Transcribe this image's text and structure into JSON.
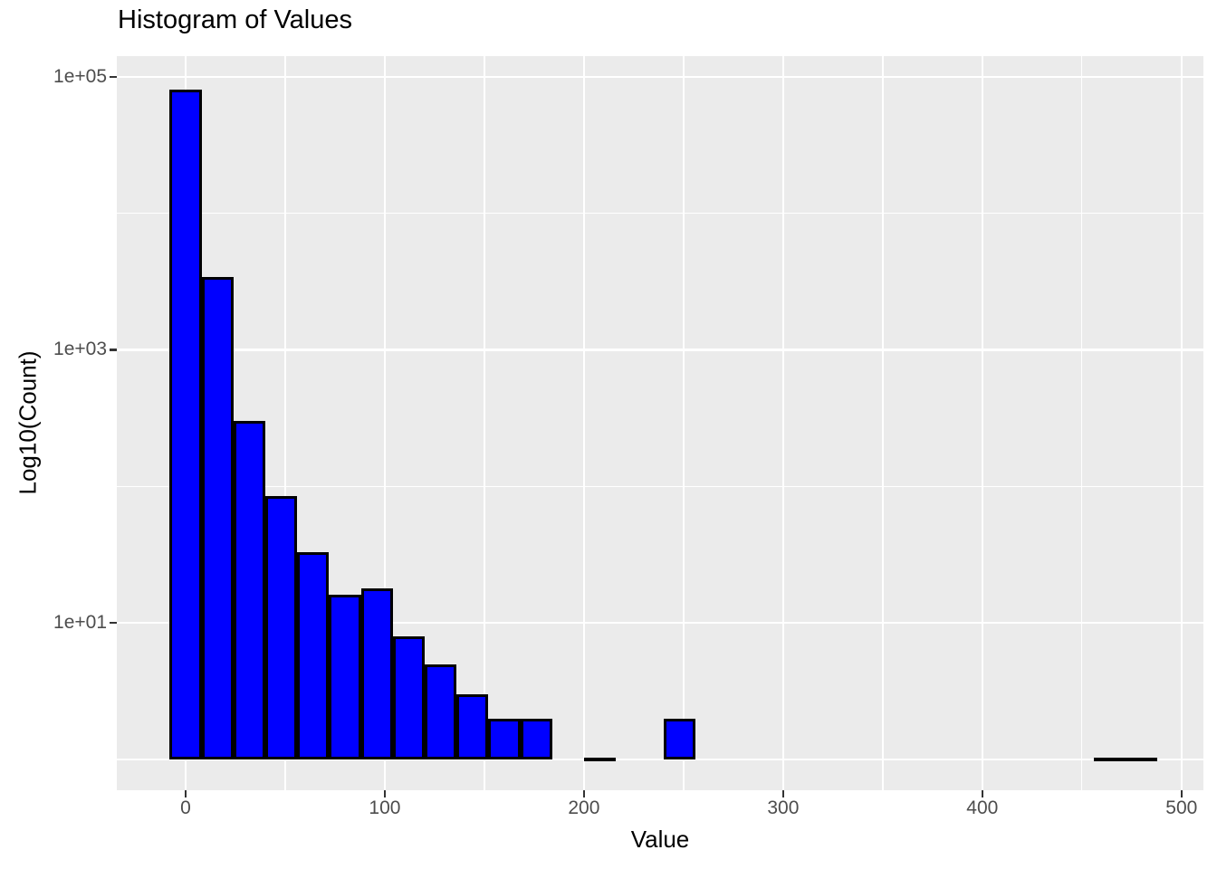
{
  "chart_data": {
    "type": "bar",
    "subtype": "histogram",
    "title": "Histogram of Values",
    "xlabel": "Value",
    "ylabel": "Log10(Count)",
    "y_scale": "log10",
    "legend": "none",
    "grid": "on",
    "panel_bg": "#EBEBEB",
    "grid_color": "#FFFFFF",
    "bar_fill": "#0000FF",
    "bar_border": "#000000",
    "tick_label_color": "#4D4D4D",
    "tick_mark_color": "#333333",
    "binwidth": 16,
    "bins": [
      {
        "center": 0,
        "count": 80000
      },
      {
        "center": 16,
        "count": 3400
      },
      {
        "center": 32,
        "count": 300
      },
      {
        "center": 48,
        "count": 85
      },
      {
        "center": 64,
        "count": 33
      },
      {
        "center": 80,
        "count": 16
      },
      {
        "center": 96,
        "count": 18
      },
      {
        "center": 112,
        "count": 8
      },
      {
        "center": 128,
        "count": 5
      },
      {
        "center": 144,
        "count": 3
      },
      {
        "center": 160,
        "count": 2
      },
      {
        "center": 176,
        "count": 2
      },
      {
        "center": 208,
        "count": 1
      },
      {
        "center": 248,
        "count": 2
      },
      {
        "center": 464,
        "count": 1
      },
      {
        "center": 480,
        "count": 1
      }
    ],
    "x_ticks": [
      {
        "value": 0,
        "label": "0"
      },
      {
        "value": 100,
        "label": "100"
      },
      {
        "value": 200,
        "label": "200"
      },
      {
        "value": 300,
        "label": "300"
      },
      {
        "value": 400,
        "label": "400"
      },
      {
        "value": 500,
        "label": "500"
      }
    ],
    "x_minor": [
      50,
      150,
      250,
      350,
      450
    ],
    "y_ticks": [
      {
        "log": 5,
        "label": "1e+05"
      },
      {
        "log": 3,
        "label": "1e+03"
      },
      {
        "log": 1,
        "label": "1e+01"
      }
    ],
    "y_minor_logs": [
      4,
      2,
      0
    ],
    "xlim": [
      -34.55,
      511.0
    ],
    "ylim_log": [
      -0.2254,
      5.1513
    ]
  }
}
